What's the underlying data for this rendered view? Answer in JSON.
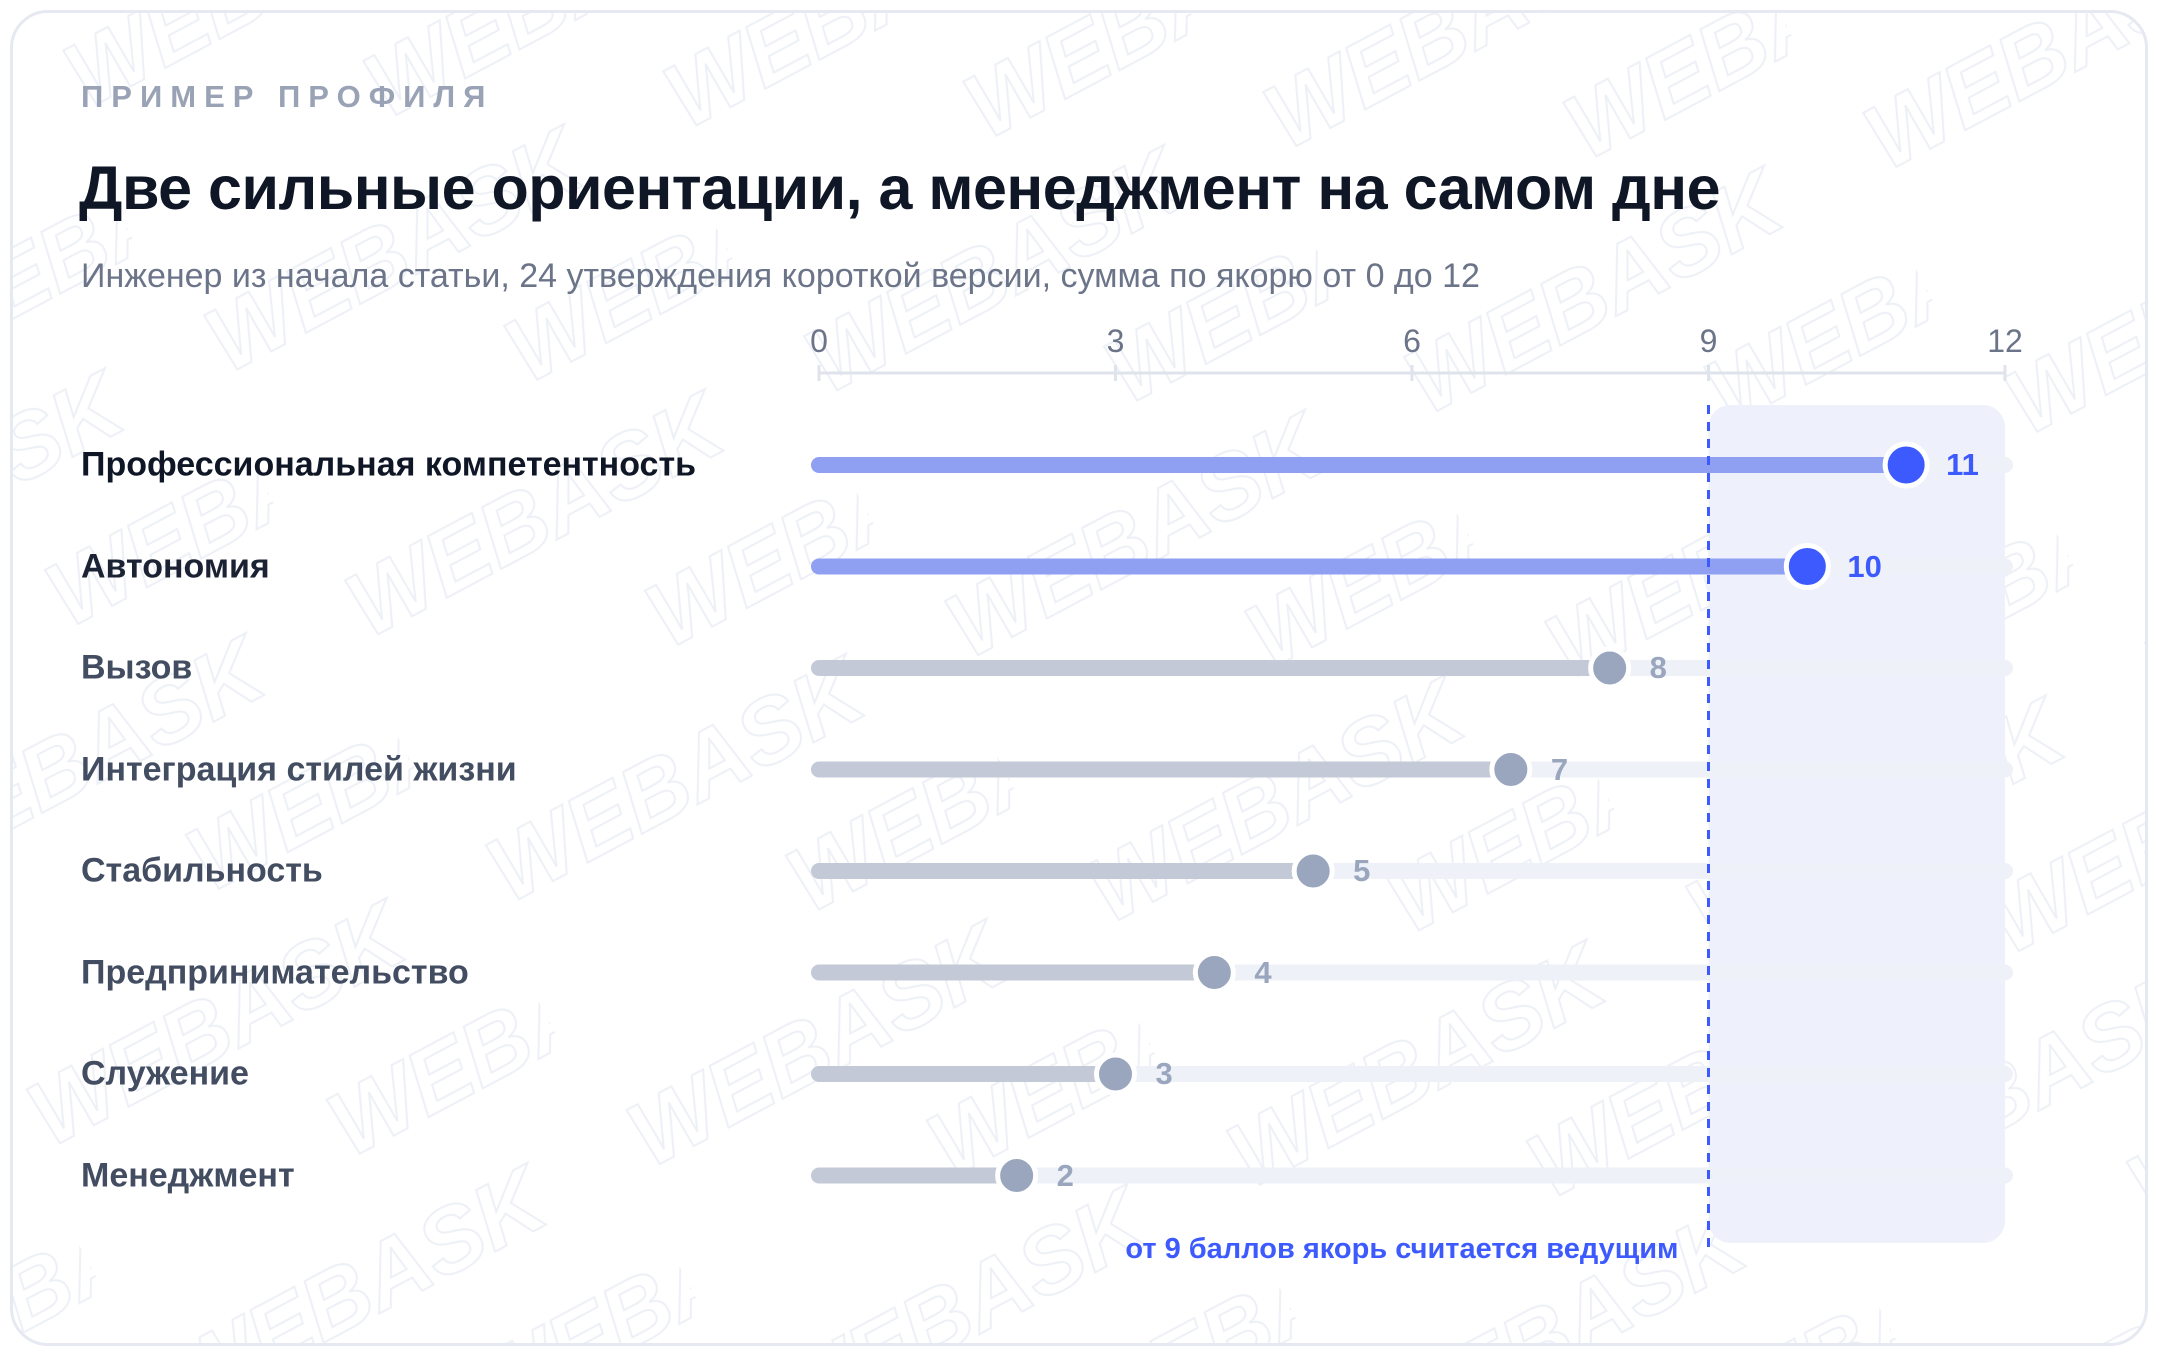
{
  "header": {
    "eyebrow": "ПРИМЕР ПРОФИЛЯ",
    "title": "Две сильные ориентации, а менеджмент на самом дне",
    "subtitle": "Инженер из начала статьи, 24 утверждения короткой версии, сумма по якорю от 0 до 12"
  },
  "watermark_text": "WEBASK",
  "colors": {
    "accent": "#3d5afe",
    "accent_bar": "#8fa0f2",
    "muted_bar": "#c3c9d6",
    "muted_dot": "#9aa6bd",
    "track": "#eef1f7",
    "highlight_zone": "#eef1fb"
  },
  "chart_data": {
    "type": "bar",
    "title": "Две сильные ориентации, а менеджмент на самом дне",
    "xlim": [
      0,
      12
    ],
    "xticks": [
      0,
      3,
      6,
      9,
      12
    ],
    "threshold": 9,
    "threshold_note": "от 9 баллов якорь считается ведущим",
    "categories": [
      "Профессиональная компетентность",
      "Автономия",
      "Вызов",
      "Интеграция стилей жизни",
      "Стабильность",
      "Предпринимательство",
      "Служение",
      "Менеджмент"
    ],
    "values": [
      11,
      10,
      8,
      7,
      5,
      4,
      3,
      2
    ]
  }
}
